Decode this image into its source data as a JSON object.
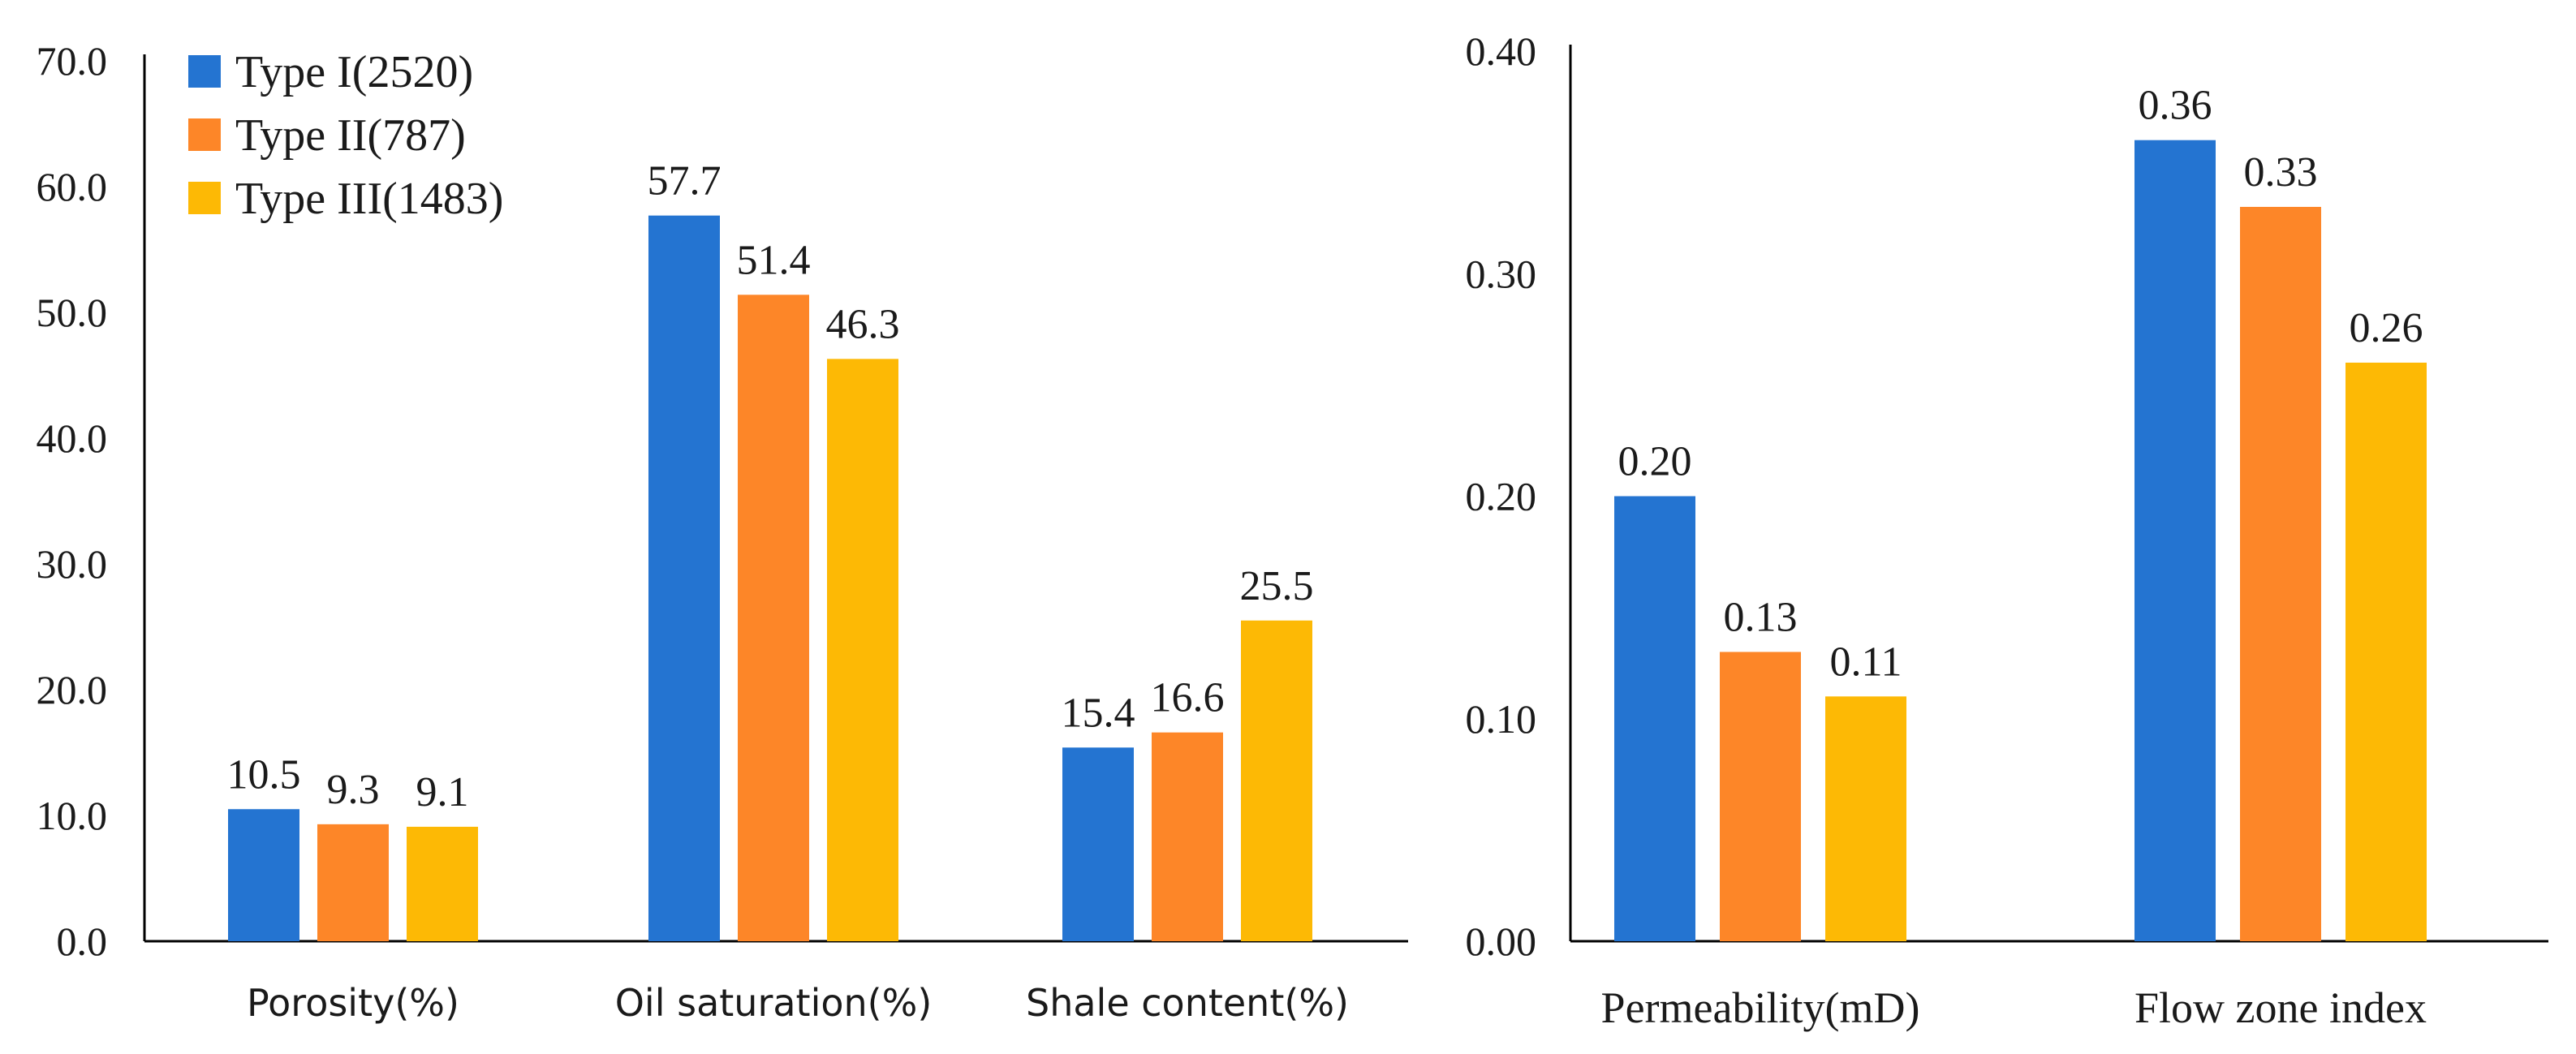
{
  "colors": {
    "type1": "#2474D1",
    "type2": "#FD8628",
    "type3": "#FDB905"
  },
  "legend": [
    {
      "label": "Type I(2520)",
      "color": "#2474D1"
    },
    {
      "label": "Type II(787)",
      "color": "#FD8628"
    },
    {
      "label": "Type III(1483)",
      "color": "#FDB905"
    }
  ],
  "chart_data": [
    {
      "type": "bar",
      "categories": [
        "Porosity(%)",
        "Oil saturation(%)",
        "Shale content(%)"
      ],
      "series": [
        {
          "name": "Type I(2520)",
          "values": [
            10.5,
            57.7,
            15.4
          ],
          "labels": [
            "10.5",
            "57.7",
            "15.4"
          ]
        },
        {
          "name": "Type II(787)",
          "values": [
            9.3,
            51.4,
            16.6
          ],
          "labels": [
            "9.3",
            "51.4",
            "16.6"
          ]
        },
        {
          "name": "Type III(1483)",
          "values": [
            9.1,
            46.3,
            25.5
          ],
          "labels": [
            "9.1",
            "46.3",
            "25.5"
          ]
        }
      ],
      "ylim": [
        0,
        70
      ],
      "yticks": [
        "0.0",
        "10.0",
        "20.0",
        "30.0",
        "40.0",
        "50.0",
        "60.0",
        "70.0"
      ],
      "legend_position": "top-left"
    },
    {
      "type": "bar",
      "categories": [
        "Permeability(mD)",
        "Flow zone index"
      ],
      "series": [
        {
          "name": "Type I(2520)",
          "values": [
            0.2,
            0.36
          ],
          "labels": [
            "0.20",
            "0.36"
          ]
        },
        {
          "name": "Type II(787)",
          "values": [
            0.13,
            0.33
          ],
          "labels": [
            "0.13",
            "0.33"
          ]
        },
        {
          "name": "Type III(1483)",
          "values": [
            0.11,
            0.26
          ],
          "labels": [
            "0.11",
            "0.26"
          ]
        }
      ],
      "ylim": [
        0,
        0.4
      ],
      "yticks": [
        "0.00",
        "0.10",
        "0.20",
        "0.30",
        "0.40"
      ]
    }
  ]
}
